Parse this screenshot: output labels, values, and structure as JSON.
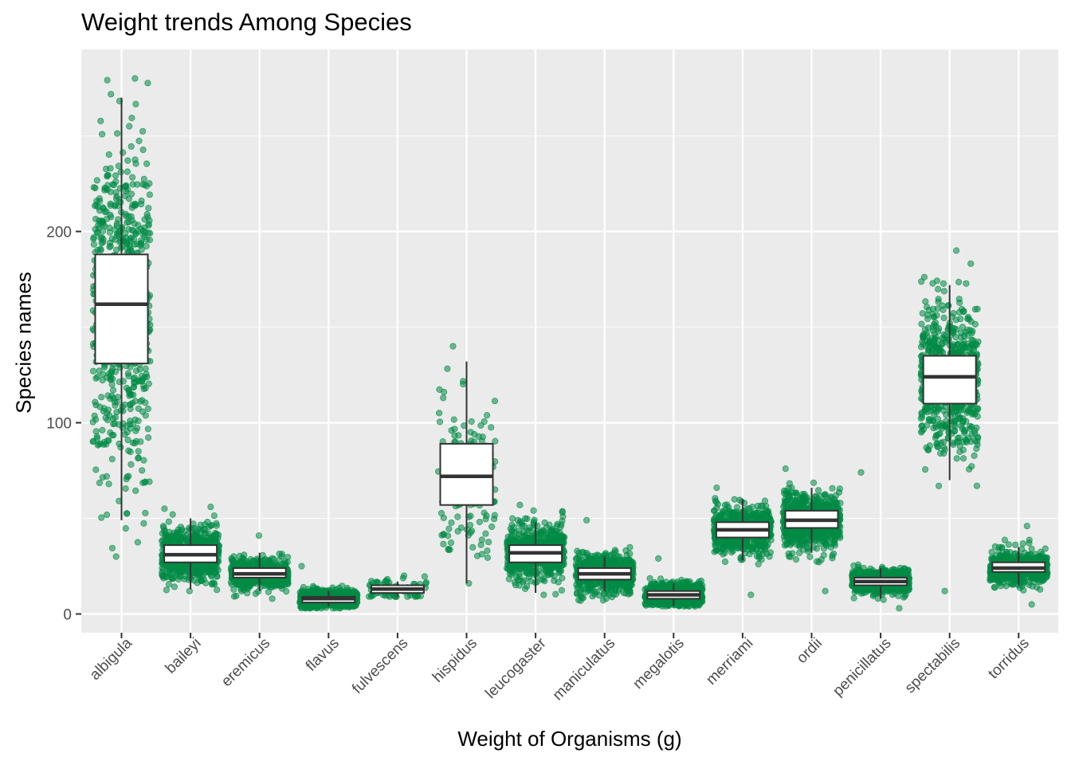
{
  "chart_data": {
    "type": "box",
    "title": "Weight trends Among Species",
    "xlabel": "Weight of Organisms (g)",
    "ylabel": "Species names",
    "ylim": [
      -10,
      290
    ],
    "y_ticks": [
      0,
      100,
      200
    ],
    "grid": true,
    "legend": "none",
    "point_color": "#008B45",
    "panel_background": "#EBEBEB",
    "categories": [
      "albigula",
      "baileyi",
      "eremicus",
      "flavus",
      "fulvescens",
      "hispidus",
      "leucogaster",
      "maniculatus",
      "megalotis",
      "merriami",
      "ordii",
      "penicillatus",
      "spectabilis",
      "torridus"
    ],
    "boxes": [
      {
        "category": "albigula",
        "whisker_low": 49,
        "q1": 131,
        "median": 162,
        "q3": 188,
        "whisker_high": 270,
        "approx_n": 1100,
        "point_range": [
          30,
          280
        ]
      },
      {
        "category": "baileyi",
        "whisker_low": 13,
        "q1": 27,
        "median": 31,
        "q3": 36,
        "whisker_high": 50,
        "approx_n": 2800,
        "point_range": [
          12,
          56
        ]
      },
      {
        "category": "eremicus",
        "whisker_low": 12,
        "q1": 19,
        "median": 21,
        "q3": 24,
        "whisker_high": 32,
        "approx_n": 1000,
        "point_range": [
          8,
          41
        ]
      },
      {
        "category": "flavus",
        "whisker_low": 4,
        "q1": 6,
        "median": 8,
        "q3": 9,
        "whisker_high": 12,
        "approx_n": 1400,
        "point_range": [
          3,
          25
        ]
      },
      {
        "category": "fulvescens",
        "whisker_low": 9,
        "q1": 11,
        "median": 13,
        "q3": 15,
        "whisker_high": 17,
        "approx_n": 70,
        "point_range": [
          9,
          20
        ]
      },
      {
        "category": "hispidus",
        "whisker_low": 16,
        "q1": 57,
        "median": 72,
        "q3": 89,
        "whisker_high": 132,
        "approx_n": 170,
        "point_range": [
          16,
          140
        ]
      },
      {
        "category": "leucogaster",
        "whisker_low": 11,
        "q1": 27,
        "median": 32,
        "q3": 36,
        "whisker_high": 48,
        "approx_n": 900,
        "point_range": [
          10,
          57
        ]
      },
      {
        "category": "maniculatus",
        "whisker_low": 12,
        "q1": 18,
        "median": 21,
        "q3": 24,
        "whisker_high": 30,
        "approx_n": 800,
        "point_range": [
          7,
          49
        ]
      },
      {
        "category": "megalotis",
        "whisker_low": 4,
        "q1": 8,
        "median": 10,
        "q3": 12,
        "whisker_high": 16,
        "approx_n": 2200,
        "point_range": [
          4,
          29
        ]
      },
      {
        "category": "merriami",
        "whisker_low": 28,
        "q1": 40,
        "median": 44,
        "q3": 48,
        "whisker_high": 60,
        "approx_n": 9500,
        "point_range": [
          10,
          66
        ]
      },
      {
        "category": "ordii",
        "whisker_low": 32,
        "q1": 45,
        "median": 49,
        "q3": 54,
        "whisker_high": 66,
        "approx_n": 3000,
        "point_range": [
          12,
          76
        ]
      },
      {
        "category": "penicillatus",
        "whisker_low": 8,
        "q1": 15,
        "median": 17,
        "q3": 19,
        "whisker_high": 24,
        "approx_n": 3000,
        "point_range": [
          3,
          74
        ]
      },
      {
        "category": "spectabilis",
        "whisker_low": 70,
        "q1": 110,
        "median": 124,
        "q3": 135,
        "whisker_high": 172,
        "approx_n": 2400,
        "point_range": [
          12,
          190
        ]
      },
      {
        "category": "torridus",
        "whisker_low": 15,
        "q1": 22,
        "median": 24,
        "q3": 27,
        "whisker_high": 35,
        "approx_n": 2100,
        "point_range": [
          5,
          46
        ]
      }
    ]
  }
}
